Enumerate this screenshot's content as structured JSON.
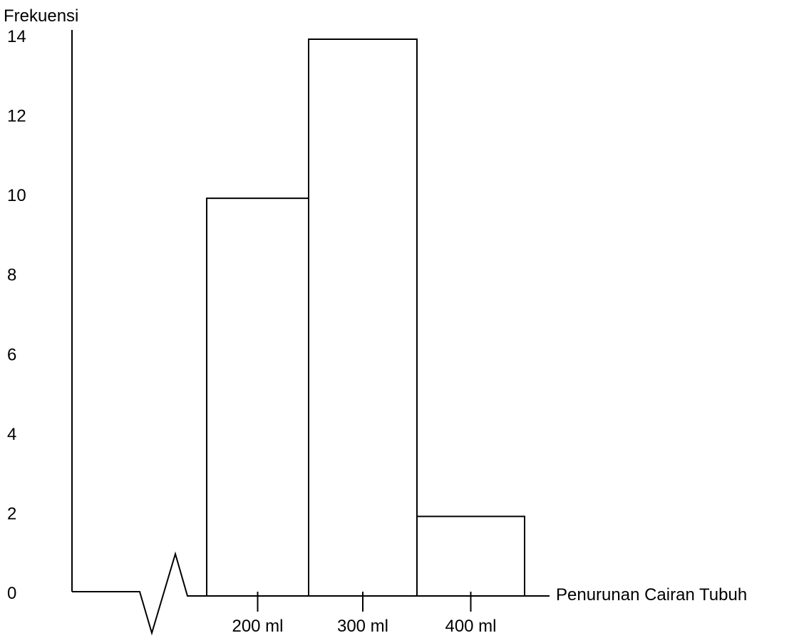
{
  "chart_data": {
    "type": "bar",
    "title": "",
    "ylabel": "Frekuensi",
    "xlabel": "Penurunan Cairan Tubuh",
    "yticks": [
      0,
      2,
      4,
      6,
      8,
      10,
      12,
      14
    ],
    "ylim": [
      0,
      14
    ],
    "categories": [
      "200 ml",
      "300 ml",
      "400 ml"
    ],
    "values": [
      10,
      14,
      2
    ],
    "axis_break": true,
    "grid": false,
    "legend": "none",
    "colors": {
      "stroke": "#000000",
      "fill": "#ffffff"
    }
  }
}
